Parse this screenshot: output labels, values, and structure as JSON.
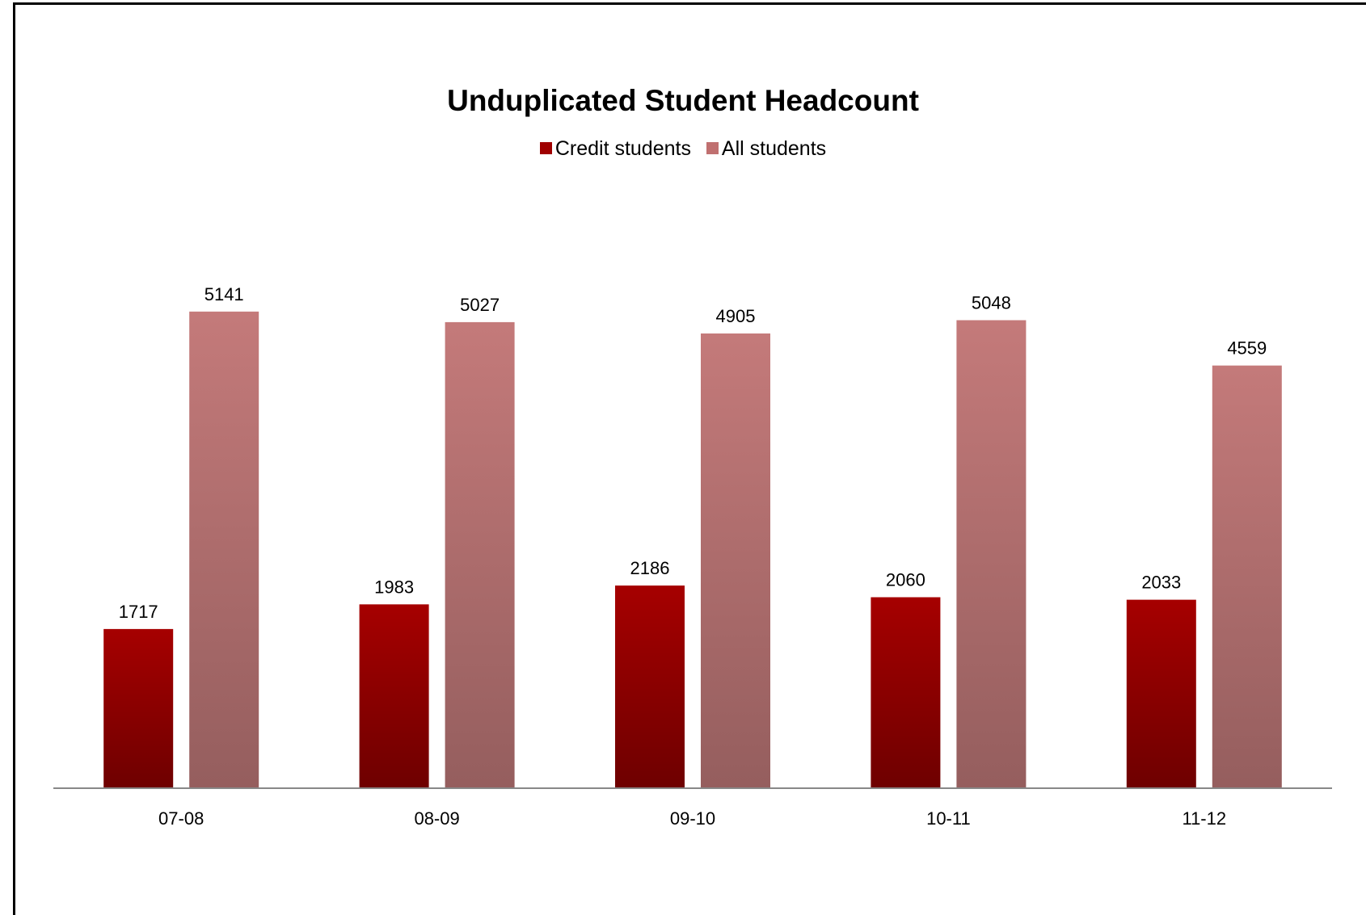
{
  "chart_data": {
    "type": "bar",
    "title": "Unduplicated Student Headcount",
    "categories": [
      "07-08",
      "08-09",
      "09-10",
      "10-11",
      "11-12"
    ],
    "series": [
      {
        "name": "Credit students",
        "values": [
          1717,
          1983,
          2186,
          2060,
          2033
        ],
        "color_top": "#a60000",
        "color_bottom": "#6e0000"
      },
      {
        "name": "All students",
        "values": [
          5141,
          5027,
          4905,
          5048,
          4559
        ],
        "color_top": "#c47a7a",
        "color_bottom": "#955e5e"
      }
    ],
    "xlabel": "",
    "ylabel": "",
    "ylim": [
      0,
      5600
    ],
    "grid": false,
    "legend_position": "top",
    "data_labels": true
  },
  "legend": {
    "items": [
      {
        "label": "Credit students",
        "color": "#a00000"
      },
      {
        "label": "All students",
        "color": "#c07070"
      }
    ]
  }
}
